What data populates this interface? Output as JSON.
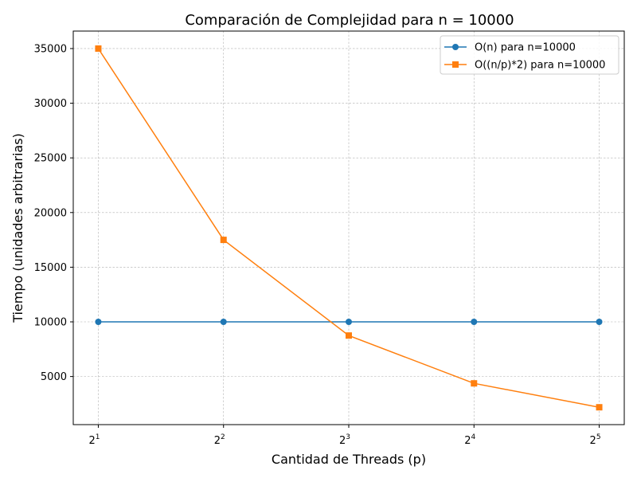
{
  "chart_data": {
    "type": "line",
    "title": "Comparación de Complejidad para n = 10000",
    "xlabel": "Cantidad de Threads (p)",
    "ylabel": "Tiempo (unidades arbitrarias)",
    "x_scale": "log2",
    "x": [
      2,
      4,
      8,
      16,
      32
    ],
    "x_tick_labels": [
      {
        "base": "2",
        "exp": "1"
      },
      {
        "base": "2",
        "exp": "2"
      },
      {
        "base": "2",
        "exp": "3"
      },
      {
        "base": "2",
        "exp": "4"
      },
      {
        "base": "2",
        "exp": "5"
      }
    ],
    "y_ticks": [
      5000,
      10000,
      15000,
      20000,
      25000,
      30000,
      35000
    ],
    "ylim": [
      600,
      36600
    ],
    "grid": true,
    "legend_position": "top-right",
    "series": [
      {
        "name": "O(n) para n=10000",
        "color": "#1f77b4",
        "marker": "circle",
        "values": [
          10000,
          10000,
          10000,
          10000,
          10000
        ]
      },
      {
        "name": "O((n/p)*2) para n=10000",
        "color": "#ff7f0e",
        "marker": "square",
        "values": [
          35000,
          17500,
          8750,
          4375,
          2187.5
        ]
      }
    ]
  }
}
